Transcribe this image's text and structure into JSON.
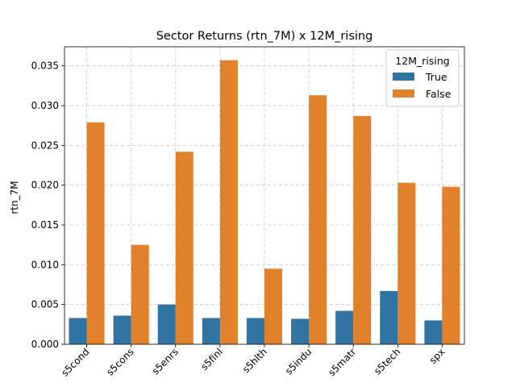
{
  "chart_data": {
    "type": "bar",
    "title": "Sector Returns (rtn_7M) x 12M_rising",
    "xlabel": "",
    "ylabel": "rtn_7M",
    "categories": [
      "s5cond",
      "s5cons",
      "s5enrs",
      "s5finl",
      "s5hlth",
      "s5indu",
      "s5matr",
      "s5tech",
      "spx"
    ],
    "series": [
      {
        "name": "True",
        "color": "#3274a1",
        "values": [
          0.0033,
          0.0036,
          0.005,
          0.0033,
          0.0033,
          0.0032,
          0.0042,
          0.0067,
          0.003
        ]
      },
      {
        "name": "False",
        "color": "#e1812c",
        "values": [
          0.0279,
          0.0125,
          0.0242,
          0.0357,
          0.0095,
          0.0313,
          0.0287,
          0.0203,
          0.0198
        ]
      }
    ],
    "ylim": [
      0,
      0.0374
    ],
    "yticks": [
      0.0,
      0.005,
      0.01,
      0.015,
      0.02,
      0.025,
      0.03,
      0.035
    ],
    "ytick_labels": [
      "0.000",
      "0.005",
      "0.010",
      "0.015",
      "0.020",
      "0.025",
      "0.030",
      "0.035"
    ],
    "grid": true,
    "legend": {
      "title": "12M_rising",
      "placement": "top-right"
    }
  }
}
